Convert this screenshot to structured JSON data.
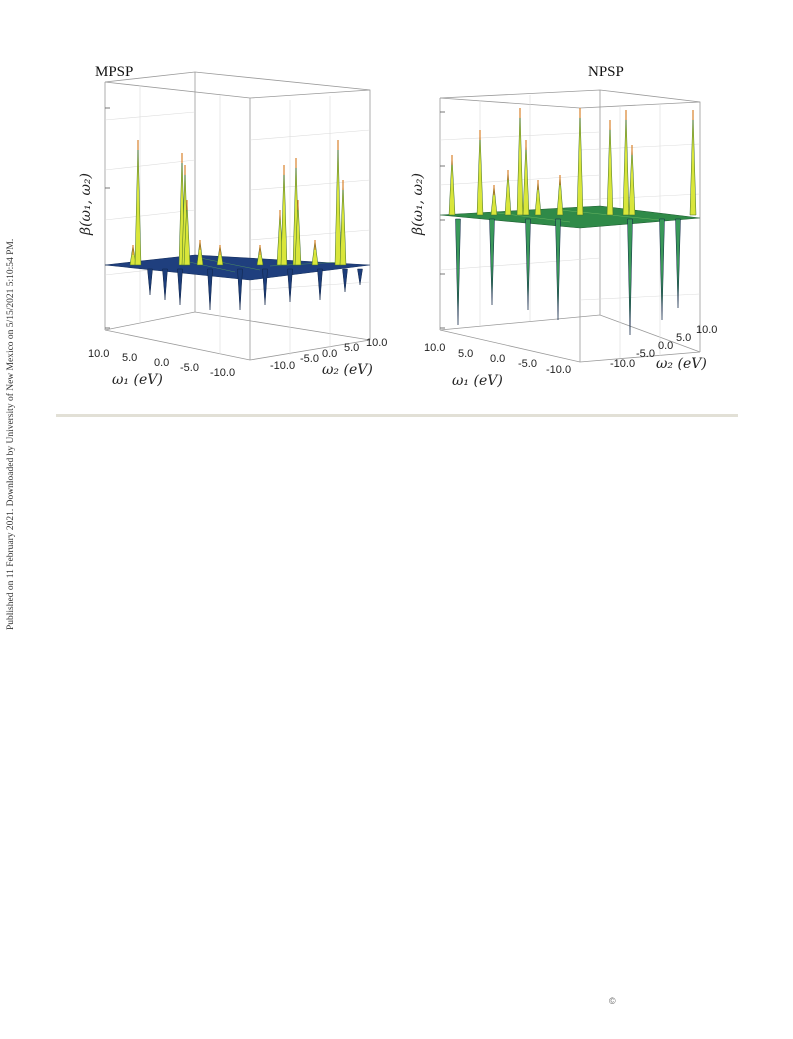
{
  "side_note": "Published on 11 February 2021. Downloaded by University of New Mexico on 5/15/2021 5:10:54 PM.",
  "copyright": "©",
  "colors": {
    "surface_low": "#1c3d7a",
    "surface_mid": "#3a9a5a",
    "surface_high": "#d9e63a",
    "peak_top": "#d9822b",
    "divider": "#e2e0d6"
  },
  "panels": [
    {
      "title": "MPSP",
      "ylabel": "β(ω₁, ω₂)",
      "x1label": "ω₁ (eV)",
      "x2label": "ω₂ (eV)",
      "x1ticks": [
        "10.0",
        "5.0",
        "0.0",
        "-5.0",
        "-10.0"
      ],
      "x2ticks": [
        "-10.0",
        "-5.0",
        "0.0",
        "5.0",
        "10.0"
      ]
    },
    {
      "title": "NPSP",
      "ylabel": "β(ω₁, ω₂)",
      "x1label": "ω₁ (eV)",
      "x2label": "ω₂ (eV)",
      "x1ticks": [
        "10.0",
        "5.0",
        "0.0",
        "-5.0",
        "-10.0"
      ],
      "x2ticks": [
        "-10.0",
        "-5.0",
        "0.0",
        "5.0",
        "10.0"
      ]
    }
  ]
}
